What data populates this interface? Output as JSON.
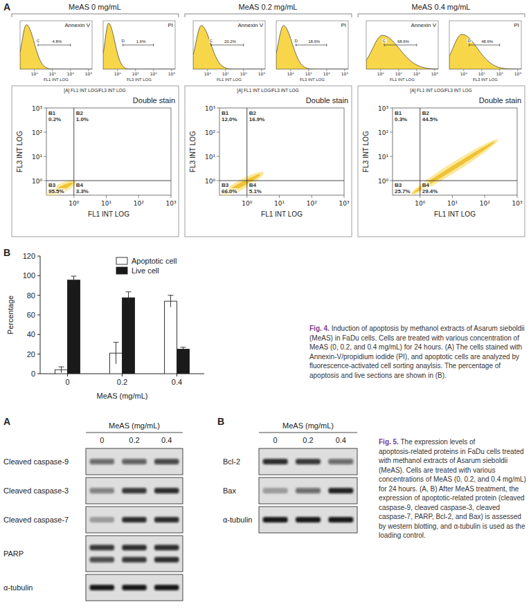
{
  "figure4": {
    "panel_a": {
      "letter": "A",
      "histogram_axis": {
        "xlim": [
          -0.8,
          3.2
        ],
        "xticks": [
          {
            "value": 0,
            "label": "10⁰"
          },
          {
            "value": 1,
            "label": "10¹"
          },
          {
            "value": 2,
            "label": "10²"
          },
          {
            "value": 3,
            "label": "10³"
          }
        ]
      },
      "dot_plot_axis": {
        "x_label": "FL1 INT LOG",
        "y_label": "FL3 INT LOG",
        "xlim": [
          -0.85,
          3
        ],
        "ylim": [
          -0.6,
          3
        ],
        "xticks": [
          {
            "value": 0,
            "label": "10⁰"
          },
          {
            "value": 1,
            "label": "10¹"
          },
          {
            "value": 2,
            "label": "10²"
          },
          {
            "value": 3,
            "label": "10³"
          }
        ],
        "yticks": [
          {
            "value": 0,
            "label": "10⁰"
          },
          {
            "value": 1,
            "label": "10¹"
          },
          {
            "value": 2,
            "label": "10²"
          },
          {
            "value": 3,
            "label": "10³"
          }
        ],
        "quadrant": [
          0,
          0
        ]
      },
      "groups": [
        {
          "title": "MeAS 0 mg/mL",
          "histograms": [
            {
              "title": "Annexin V",
              "x_label": "FL1 INT LOG",
              "gate_letter": "C",
              "gate_value": "4.8%",
              "gate": [
                0.2,
                2.0
              ],
              "peak": -0.45,
              "width": 0.25,
              "height": 0.92
            },
            {
              "title": "PI",
              "x_label": "FL3 INT LOG",
              "gate_letter": "D",
              "gate_value": "1.6%",
              "gate": [
                0.3,
                2.0
              ],
              "peak": -0.5,
              "width": 0.2,
              "height": 0.95
            }
          ],
          "dot_plot": {
            "header": "[A] FL1 INT LOG/FL3 INT LOG",
            "title": "Double stain",
            "quadrants": [
              {
                "name": "B1",
                "value": "0.2%"
              },
              {
                "name": "B2",
                "value": "1.0%"
              },
              {
                "name": "B3",
                "value": "95.5%"
              },
              {
                "name": "B4",
                "value": "3.3%"
              }
            ],
            "cloud": {
              "from": [
                -0.75,
                -0.55
              ],
              "to": [
                -0.05,
                -0.1
              ]
            }
          }
        },
        {
          "title": "MeAS 0.2 mg/mL",
          "histograms": [
            {
              "title": "Annexin V",
              "x_label": "FL1 INT LOG",
              "gate_letter": "C",
              "gate_value": "20.2%",
              "gate": [
                0.2,
                2.0
              ],
              "peak": -0.35,
              "width": 0.3,
              "height": 0.9
            },
            {
              "title": "PI",
              "x_label": "FL3 INT LOG",
              "gate_letter": "D",
              "gate_value": "18.6%",
              "gate": [
                0.3,
                2.0
              ],
              "peak": -0.4,
              "width": 0.28,
              "height": 0.9
            }
          ],
          "dot_plot": {
            "header": "[A] FL1 INT LOG/FL3 INT LOG",
            "title": "Double stain",
            "quadrants": [
              {
                "name": "B1",
                "value": "12.0%"
              },
              {
                "name": "B2",
                "value": "16.9%"
              },
              {
                "name": "B3",
                "value": "66.0%"
              },
              {
                "name": "B4",
                "value": "5.1%"
              }
            ],
            "cloud": {
              "from": [
                -0.7,
                -0.55
              ],
              "to": [
                0.4,
                0.25
              ]
            }
          }
        },
        {
          "title": "MeAS 0.4 mg/mL",
          "histograms": [
            {
              "title": "Annexin V",
              "x_label": "FL1 INT LOG",
              "gate_letter": "C",
              "gate_value": "68.6%",
              "gate": [
                0.2,
                2.0
              ],
              "peak": 0.1,
              "width": 0.55,
              "height": 0.7
            },
            {
              "title": "PI",
              "x_label": "FL3 INT LOG",
              "gate_letter": "D",
              "gate_value": "48.6%",
              "gate": [
                0.3,
                2.0
              ],
              "peak": -0.1,
              "width": 0.5,
              "height": 0.72
            }
          ],
          "dot_plot": {
            "header": "[A] FL1 INT LOG/FL3 INT LOG",
            "title": "Double stain",
            "quadrants": [
              {
                "name": "B1",
                "value": "0.3%"
              },
              {
                "name": "B2",
                "value": "44.5%"
              },
              {
                "name": "B3",
                "value": "25.7%"
              },
              {
                "name": "B4",
                "value": "29.4%"
              }
            ],
            "cloud": {
              "from": [
                -0.2,
                -0.5
              ],
              "to": [
                2.3,
                1.6
              ]
            }
          }
        }
      ]
    },
    "panel_b_letter": "B",
    "caption": {
      "label": "Fig. 4.",
      "text": "Induction of apoptosis by methanol extracts of Asarum sieboldii (MeAS) in FaDu cells. Cells are treated with various concentration of MeAS (0, 0.2, and 0.4 mg/mL) for 24 hours. (A) The cells stained with Annexin-V/propidium iodide (PI), and apoptotic cells are analyzed by fluorescence-activated cell sorting anaylsis. The percentage of apoptosis and live sections are shown in (B)."
    }
  },
  "chart_data": {
    "type": "bar",
    "x_label": "MeAS (mg/mL)",
    "y_label": "Percentage",
    "categories": [
      "0",
      "0.2",
      "0.4"
    ],
    "series": [
      {
        "name": "Apoptotic cell",
        "color": "#ffffff",
        "values": [
          4,
          21,
          74
        ],
        "errors": [
          3,
          11,
          6
        ]
      },
      {
        "name": "Live cell",
        "color": "#1a1a1a",
        "values": [
          95.5,
          77.5,
          25
        ],
        "errors": [
          4,
          6,
          2
        ]
      }
    ],
    "ylim": [
      0,
      120
    ],
    "yticks": [
      0,
      20,
      40,
      60,
      80,
      100,
      120
    ],
    "legend": "top",
    "grid": false
  },
  "figure5": {
    "panel_a": {
      "letter": "A",
      "header": "MeAS (mg/mL)",
      "lanes": [
        "0",
        "0.2",
        "0.4"
      ],
      "rows": [
        {
          "label": "Cleaved caspase-9",
          "bands": [
            [
              0.55,
              0.6,
              0.72
            ]
          ]
        },
        {
          "label": "Cleaved caspase-3",
          "bands": [
            [
              0.45,
              0.8,
              0.85
            ]
          ]
        },
        {
          "label": "Cleaved caspase-7",
          "bands": [
            [
              0.3,
              0.85,
              0.85
            ]
          ]
        },
        {
          "label": "PARP",
          "bands": [
            [
              0.8,
              0.85,
              0.85
            ],
            [
              0.7,
              0.8,
              0.85
            ]
          ]
        },
        {
          "label": "α-tubulin",
          "bands": [
            [
              0.95,
              0.95,
              0.95
            ]
          ]
        }
      ]
    },
    "panel_b": {
      "letter": "B",
      "header": "MeAS (mg/mL)",
      "lanes": [
        "0",
        "0.2",
        "0.4"
      ],
      "rows": [
        {
          "label": "Bcl-2",
          "bands": [
            [
              0.85,
              0.8,
              0.55
            ]
          ]
        },
        {
          "label": "Bax",
          "bands": [
            [
              0.3,
              0.55,
              0.9
            ]
          ]
        },
        {
          "label": "α-tubulin",
          "bands": [
            [
              0.95,
              0.95,
              0.95
            ]
          ]
        }
      ]
    },
    "caption": {
      "label": "Fig. 5.",
      "text": "The expression levels of apoptosis-related proteins in FaDu cells treated with methanol extracts of Asarum sieboldii (MeAS). Cells are treated with various concentrations of MeAS (0, 0.2, and 0.4 mg/mL) for 24 hours. (A, B) After MeAS treatment, the expression of apoptotic-related protein (cleaved caspase-9, cleaved caspase-3, cleaved caspase-7, PARP, Bcl-2, and Bax) is assessed by western blotting, and α-tubulin is used as the loading control."
    }
  }
}
